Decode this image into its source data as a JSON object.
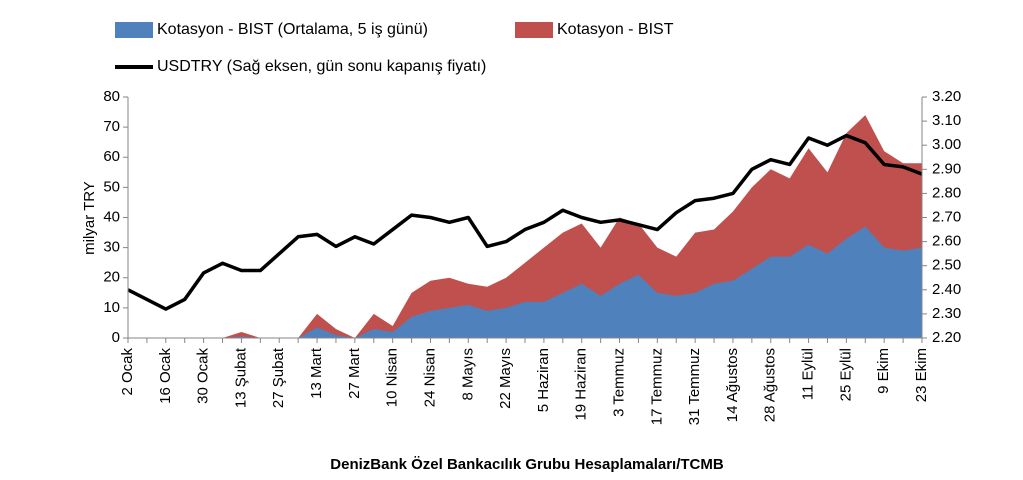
{
  "chart_data": {
    "type": "area",
    "footer": "DenizBank Özel Bankacılık Grubu Hesaplamaları/TCMB",
    "y_label": "milyar TRY",
    "categories": [
      "2 Ocak",
      null,
      "16 Ocak",
      null,
      "30 Ocak",
      null,
      "13 Şubat",
      null,
      "27 Şubat",
      null,
      "13 Mart",
      null,
      "27 Mart",
      null,
      "10 Nisan",
      null,
      "24 Nisan",
      null,
      "8 Mayıs",
      null,
      "22 Mayıs",
      null,
      "5 Haziran",
      null,
      "19 Haziran",
      null,
      "3 Temmuz",
      null,
      "17 Temmuz",
      null,
      "31 Temmuz",
      null,
      "14 Ağustos",
      null,
      "28 Ağustos",
      null,
      "11 Eylül",
      null,
      "25 Eylül",
      null,
      "9 Ekim",
      null,
      "23 Ekim"
    ],
    "series": [
      {
        "name": "Kotasyon - BIST",
        "type": "area",
        "color": "#c0504d",
        "legend_slot": 1,
        "values": [
          0,
          0,
          0,
          0,
          0,
          0,
          2,
          0,
          0,
          0,
          8,
          3,
          0,
          8,
          4,
          15,
          19,
          20,
          18,
          17,
          20,
          25,
          30,
          35,
          38,
          30,
          40,
          38,
          30,
          27,
          35,
          36,
          42,
          50,
          56,
          53,
          63,
          55,
          68,
          74,
          62,
          58,
          58
        ]
      },
      {
        "name": "Kotasyon - BIST (Ortalama, 5 iş günü)",
        "type": "area",
        "color": "#4f81bd",
        "legend_slot": 0,
        "values": [
          0,
          0,
          0,
          0,
          0,
          0,
          0.5,
          0,
          0,
          0,
          3.5,
          1,
          0,
          3,
          2,
          7,
          9,
          10,
          11,
          9,
          10,
          12,
          12,
          15,
          18,
          14,
          18,
          21,
          15,
          14,
          15,
          18,
          19,
          23,
          27,
          27,
          31,
          28,
          33,
          37,
          30,
          29,
          30
        ]
      },
      {
        "name": "USDTRY (Sağ eksen, gün sonu kapanış fiyatı)",
        "type": "line",
        "axis": "y2",
        "color": "#000000",
        "legend_slot": 2,
        "values": [
          2.4,
          2.36,
          2.32,
          2.36,
          2.47,
          2.51,
          2.48,
          2.48,
          2.55,
          2.62,
          2.63,
          2.58,
          2.62,
          2.59,
          2.65,
          2.71,
          2.7,
          2.68,
          2.7,
          2.58,
          2.6,
          2.65,
          2.68,
          2.73,
          2.7,
          2.68,
          2.69,
          2.67,
          2.65,
          2.72,
          2.77,
          2.78,
          2.8,
          2.9,
          2.94,
          2.92,
          3.03,
          3.0,
          3.04,
          3.01,
          2.92,
          2.91,
          2.88
        ]
      }
    ],
    "ylim": [
      0,
      80
    ],
    "yticks": [
      0,
      10,
      20,
      30,
      40,
      50,
      60,
      70,
      80
    ],
    "y2lim": [
      2.2,
      3.2
    ],
    "y2ticks": [
      {
        "value": 2.2,
        "label": "2.20"
      },
      {
        "value": 2.3,
        "label": "2.30"
      },
      {
        "value": 2.4,
        "label": "2.40"
      },
      {
        "value": 2.5,
        "label": "2.50"
      },
      {
        "value": 2.6,
        "label": "2.60"
      },
      {
        "value": 2.7,
        "label": "2.70"
      },
      {
        "value": 2.8,
        "label": "2.80"
      },
      {
        "value": 2.9,
        "label": "2.90"
      },
      {
        "value": 3.0,
        "label": "3.00"
      },
      {
        "value": 3.1,
        "label": "3.10"
      },
      {
        "value": 3.2,
        "label": "3.20"
      }
    ],
    "grid": false
  }
}
